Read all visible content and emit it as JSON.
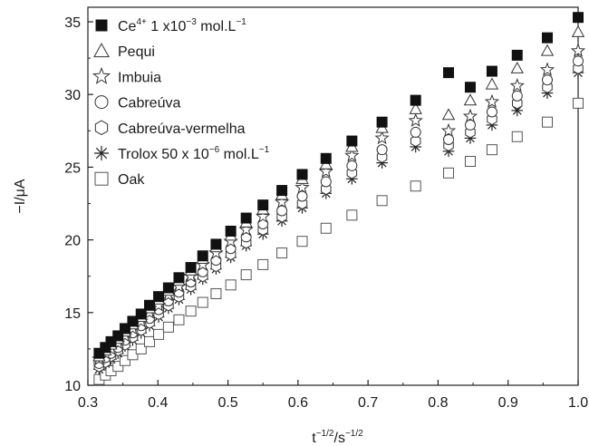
{
  "chart_data": {
    "type": "scatter",
    "xlabel": {
      "base": "t",
      "exp1": "−1/2",
      "mid": "/s",
      "exp2": "−1/2"
    },
    "ylabel": "−I/μA",
    "xlim": [
      0.3,
      1.0
    ],
    "ylim": [
      10,
      36
    ],
    "xticks": [
      "0.3",
      "0.4",
      "0.5",
      "0.6",
      "0.7",
      "0.8",
      "0.9",
      "1.0"
    ],
    "yticks": [
      "10",
      "15",
      "20",
      "25",
      "30",
      "35"
    ],
    "grid": false,
    "legend_position": "top-left",
    "x": [
      0.316,
      0.325,
      0.333,
      0.343,
      0.353,
      0.364,
      0.376,
      0.388,
      0.401,
      0.415,
      0.43,
      0.447,
      0.464,
      0.483,
      0.504,
      0.526,
      0.55,
      0.577,
      0.606,
      0.64,
      0.677,
      0.72,
      0.768,
      0.815,
      0.846,
      0.877,
      0.913,
      0.956,
      1.0
    ],
    "series": [
      {
        "key": "ce",
        "marker": "filled-square",
        "legend": {
          "pre": "Ce",
          "sup1": "4+",
          "mid": " 1 x10",
          "sup2": "−3",
          "post": " mol.L",
          "sup3": "−1"
        },
        "values": [
          12.2,
          12.6,
          13.0,
          13.4,
          13.9,
          14.4,
          14.9,
          15.5,
          16.1,
          16.7,
          17.4,
          18.1,
          18.9,
          19.7,
          20.6,
          21.5,
          22.4,
          23.4,
          24.5,
          25.6,
          26.8,
          28.1,
          29.6,
          31.5,
          30.5,
          31.6,
          32.7,
          33.9,
          35.3
        ]
      },
      {
        "key": "pequi",
        "marker": "triangle",
        "legend": {
          "pre": "Pequi"
        },
        "values": [
          12.0,
          12.4,
          12.8,
          13.2,
          13.7,
          14.2,
          14.7,
          15.3,
          15.9,
          16.5,
          17.2,
          17.9,
          18.7,
          19.5,
          20.3,
          21.2,
          22.1,
          23.1,
          24.2,
          25.2,
          26.4,
          27.7,
          29.0,
          28.6,
          29.6,
          30.7,
          31.8,
          33.0,
          34.3
        ]
      },
      {
        "key": "imbuia",
        "marker": "star",
        "legend": {
          "pre": "Imbuia"
        },
        "values": [
          11.8,
          12.2,
          12.5,
          12.9,
          13.4,
          13.9,
          14.4,
          15.0,
          15.5,
          16.2,
          16.8,
          17.5,
          18.3,
          19.1,
          19.9,
          20.7,
          21.6,
          22.6,
          23.6,
          24.7,
          25.8,
          27.0,
          28.2,
          27.5,
          28.5,
          29.5,
          30.6,
          31.7,
          33.0
        ]
      },
      {
        "key": "cabreuva",
        "marker": "circle",
        "legend": {
          "pre": "Cabreúva"
        },
        "values": [
          11.5,
          11.9,
          12.2,
          12.6,
          13.1,
          13.6,
          14.1,
          14.6,
          15.2,
          15.8,
          16.4,
          17.1,
          17.8,
          18.6,
          19.4,
          20.2,
          21.1,
          22.0,
          23.0,
          24.0,
          25.1,
          26.2,
          27.4,
          26.9,
          27.9,
          28.8,
          29.9,
          31.0,
          32.3
        ]
      },
      {
        "key": "cabreuva_vermelha",
        "marker": "hexagon",
        "legend": {
          "pre": "Cabreúva-vermelha"
        },
        "values": [
          11.3,
          11.6,
          12.0,
          12.4,
          12.8,
          13.3,
          13.8,
          14.3,
          14.9,
          15.5,
          16.1,
          16.8,
          17.5,
          18.2,
          19.0,
          19.8,
          20.7,
          21.6,
          22.5,
          23.5,
          24.6,
          25.7,
          26.8,
          26.5,
          27.4,
          28.3,
          29.4,
          30.5,
          31.8
        ]
      },
      {
        "key": "trolox",
        "marker": "asterisk",
        "legend": {
          "pre": "Trolox 50 x 10",
          "sup1": "−6",
          "mid": " mol.L",
          "sup2": "−1"
        },
        "values": [
          11.1,
          11.5,
          11.8,
          12.2,
          12.7,
          13.1,
          13.6,
          14.1,
          14.7,
          15.3,
          15.9,
          16.6,
          17.3,
          18.0,
          18.8,
          19.6,
          20.4,
          21.3,
          22.2,
          23.2,
          24.2,
          25.3,
          26.4,
          26.1,
          27.0,
          27.9,
          28.9,
          30.1,
          31.5
        ]
      },
      {
        "key": "oak",
        "marker": "open-square",
        "legend": {
          "pre": "Oak"
        },
        "values": [
          10.4,
          10.7,
          11.0,
          11.3,
          11.7,
          12.1,
          12.5,
          13.0,
          13.5,
          14.0,
          14.5,
          15.1,
          15.7,
          16.3,
          16.9,
          17.6,
          18.3,
          19.1,
          19.9,
          20.8,
          21.7,
          22.7,
          23.7,
          24.6,
          25.4,
          26.2,
          27.1,
          28.1,
          29.4
        ]
      }
    ]
  }
}
